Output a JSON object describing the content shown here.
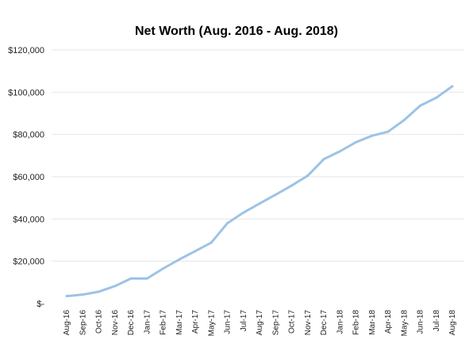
{
  "chart_data": {
    "type": "line",
    "title": "Net Worth (Aug. 2016 - Aug. 2018)",
    "xlabel": "",
    "ylabel": "",
    "ylim": [
      0,
      120000
    ],
    "yticks": [
      {
        "value": 0,
        "label": "$-"
      },
      {
        "value": 20000,
        "label": "$20,000"
      },
      {
        "value": 40000,
        "label": "$40,000"
      },
      {
        "value": 60000,
        "label": "$60,000"
      },
      {
        "value": 80000,
        "label": "$80,000"
      },
      {
        "value": 100000,
        "label": "$100,000"
      },
      {
        "value": 120000,
        "label": "$120,000"
      }
    ],
    "grid": true,
    "legend": "none",
    "line_color": "#9dc3e6",
    "categories": [
      "Aug-16",
      "Sep-16",
      "Oct-16",
      "Nov-16",
      "Dec-16",
      "Jan-17",
      "Feb-17",
      "Mar-17",
      "Apr-17",
      "May-17",
      "Jun-17",
      "Jul-17",
      "Aug-17",
      "Sep-17",
      "Oct-17",
      "Nov-17",
      "Dec-17",
      "Jan-18",
      "Feb-18",
      "Mar-18",
      "Apr-18",
      "May-18",
      "Jun-18",
      "Jul-18",
      "Aug-18"
    ],
    "series": [
      {
        "values": [
          3500,
          4200,
          5600,
          8200,
          11800,
          11800,
          16500,
          20800,
          24800,
          28800,
          38000,
          43000,
          47300,
          51500,
          55800,
          60500,
          68300,
          72000,
          76300,
          79400,
          81300,
          86800,
          93600,
          97400,
          102800
        ]
      }
    ]
  }
}
